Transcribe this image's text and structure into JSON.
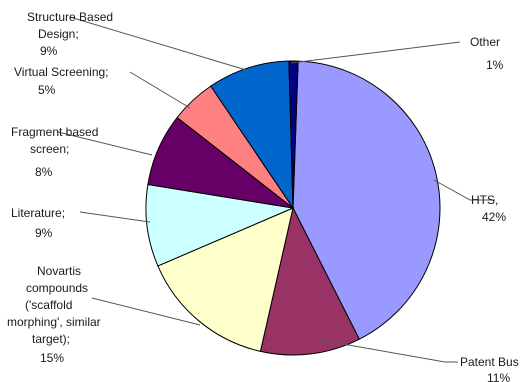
{
  "chart_data": {
    "type": "pie",
    "title": "",
    "slices": [
      {
        "name": "HTS",
        "sep": ",",
        "value": 42,
        "pct_label": "42%",
        "color": "#9999ff"
      },
      {
        "name": "Patent Bus",
        "sep": "",
        "value": 11,
        "pct_label": "11%",
        "color": "#993366"
      },
      {
        "name": "Novartis compounds ('scaffold morphing', similar target)",
        "sep": ";",
        "value": 15,
        "pct_label": "15%",
        "color": "#ffffcc"
      },
      {
        "name": "Literature",
        "sep": ";",
        "value": 9,
        "pct_label": "9%",
        "color": "#ccffff"
      },
      {
        "name": "Fragment based screen",
        "sep": ";",
        "value": 8,
        "pct_label": "8%",
        "color": "#660066"
      },
      {
        "name": "Virtual Screening",
        "sep": ";",
        "value": 5,
        "pct_label": "5%",
        "color": "#ff8080"
      },
      {
        "name": "Structure Based Design",
        "sep": ";",
        "value": 9,
        "pct_label": "9%",
        "color": "#0066cc"
      },
      {
        "name": "Other",
        "sep": "",
        "value": 1,
        "pct_label": "1%",
        "color": "#000080"
      }
    ]
  }
}
